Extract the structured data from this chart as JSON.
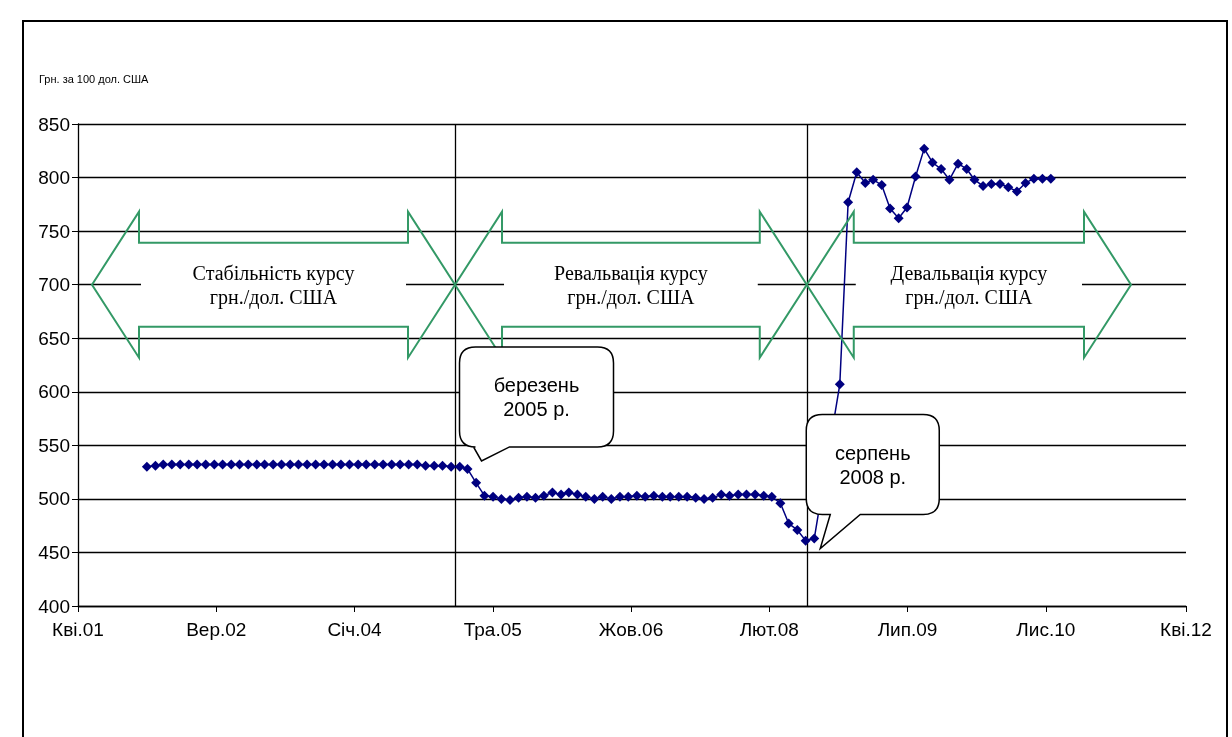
{
  "chart_data": {
    "type": "line",
    "ylabel": "Грн. за 100 дол. США",
    "xlim": [
      "2001-04-28",
      "2012-04-01"
    ],
    "xticks": [
      {
        "value": "2001-04-28",
        "label": "Кві.01"
      },
      {
        "value": "2002-09-08",
        "label": "Вер.02"
      },
      {
        "value": "2004-01-19",
        "label": "Січ.04"
      },
      {
        "value": "2005-05-31",
        "label": "Тра.05"
      },
      {
        "value": "2006-10-11",
        "label": "Жов.06"
      },
      {
        "value": "2008-02-21",
        "label": "Лют.08"
      },
      {
        "value": "2009-07-03",
        "label": "Лип.09"
      },
      {
        "value": "2010-11-13",
        "label": "Лис.10"
      },
      {
        "value": "2012-04-01",
        "label": "Кві.12"
      }
    ],
    "ylim": [
      400,
      850
    ],
    "yticks": [
      400,
      450,
      500,
      550,
      600,
      650,
      700,
      750,
      800,
      850
    ],
    "grid": "y",
    "marker": "diamond",
    "line_style": "solid",
    "series": [
      {
        "color": "#000080",
        "x": [
          "2002-01",
          "2002-02",
          "2002-03",
          "2002-04",
          "2002-05",
          "2002-06",
          "2002-07",
          "2002-08",
          "2002-09",
          "2002-10",
          "2002-11",
          "2002-12",
          "2003-01",
          "2003-02",
          "2003-03",
          "2003-04",
          "2003-05",
          "2003-06",
          "2003-07",
          "2003-08",
          "2003-09",
          "2003-10",
          "2003-11",
          "2003-12",
          "2004-01",
          "2004-02",
          "2004-03",
          "2004-04",
          "2004-05",
          "2004-06",
          "2004-07",
          "2004-08",
          "2004-09",
          "2004-10",
          "2004-11",
          "2004-12",
          "2005-01",
          "2005-02",
          "2005-03",
          "2005-04",
          "2005-05",
          "2005-06",
          "2005-07",
          "2005-08",
          "2005-09",
          "2005-10",
          "2005-11",
          "2005-12",
          "2006-01",
          "2006-02",
          "2006-03",
          "2006-04",
          "2006-05",
          "2006-06",
          "2006-07",
          "2006-08",
          "2006-09",
          "2006-10",
          "2006-11",
          "2006-12",
          "2007-01",
          "2007-02",
          "2007-03",
          "2007-04",
          "2007-05",
          "2007-06",
          "2007-07",
          "2007-08",
          "2007-09",
          "2007-10",
          "2007-11",
          "2007-12",
          "2008-01",
          "2008-02",
          "2008-03",
          "2008-04",
          "2008-05",
          "2008-06",
          "2008-07",
          "2008-08",
          "2008-11",
          "2008-12",
          "2009-01",
          "2009-02",
          "2009-03",
          "2009-04",
          "2009-05",
          "2009-06",
          "2009-07",
          "2009-08",
          "2009-09",
          "2009-10",
          "2009-11",
          "2009-12",
          "2010-01",
          "2010-02",
          "2010-03",
          "2010-04",
          "2010-05",
          "2010-06",
          "2010-07",
          "2010-08",
          "2010-09",
          "2010-10",
          "2010-11",
          "2010-12"
        ],
        "values": [
          530,
          531,
          532,
          532,
          532,
          532,
          532,
          532,
          532,
          532,
          532,
          532,
          532,
          532,
          532,
          532,
          532,
          532,
          532,
          532,
          532,
          532,
          532,
          532,
          532,
          532,
          532,
          532,
          532,
          532,
          532,
          532,
          532,
          531,
          531,
          531,
          530,
          530,
          528,
          515,
          503,
          502,
          500,
          499,
          501,
          502,
          501,
          503,
          506,
          504,
          506,
          504,
          502,
          500,
          502,
          500,
          502,
          502,
          503,
          502,
          503,
          502,
          502,
          502,
          502,
          501,
          500,
          501,
          504,
          503,
          504,
          504,
          504,
          503,
          502,
          496,
          477,
          471,
          461,
          463,
          607,
          777,
          805,
          795,
          798,
          793,
          771,
          762,
          772,
          801,
          827,
          814,
          808,
          798,
          813,
          808,
          798,
          792,
          794,
          794,
          791,
          787,
          795,
          799,
          799,
          799
        ]
      }
    ],
    "ref_lines": [
      {
        "axis": "x",
        "value": "2005-01-15",
        "color": "#000000",
        "line_style": "solid"
      },
      {
        "axis": "x",
        "value": "2008-07-05",
        "color": "#000000",
        "line_style": "solid"
      }
    ],
    "annotations": [
      "Стабільність курсу\nгрн./дол. США",
      "Ревальвація курсу\nгрн./дол. США",
      "Девальвація курсу\nгрн./дол. США",
      {
        "text": "березень\n2005 р.",
        "x": "2005-03",
        "y": 528
      },
      {
        "text": "серпень\n2008 р.",
        "x": "2008-08",
        "y": 463
      }
    ]
  }
}
